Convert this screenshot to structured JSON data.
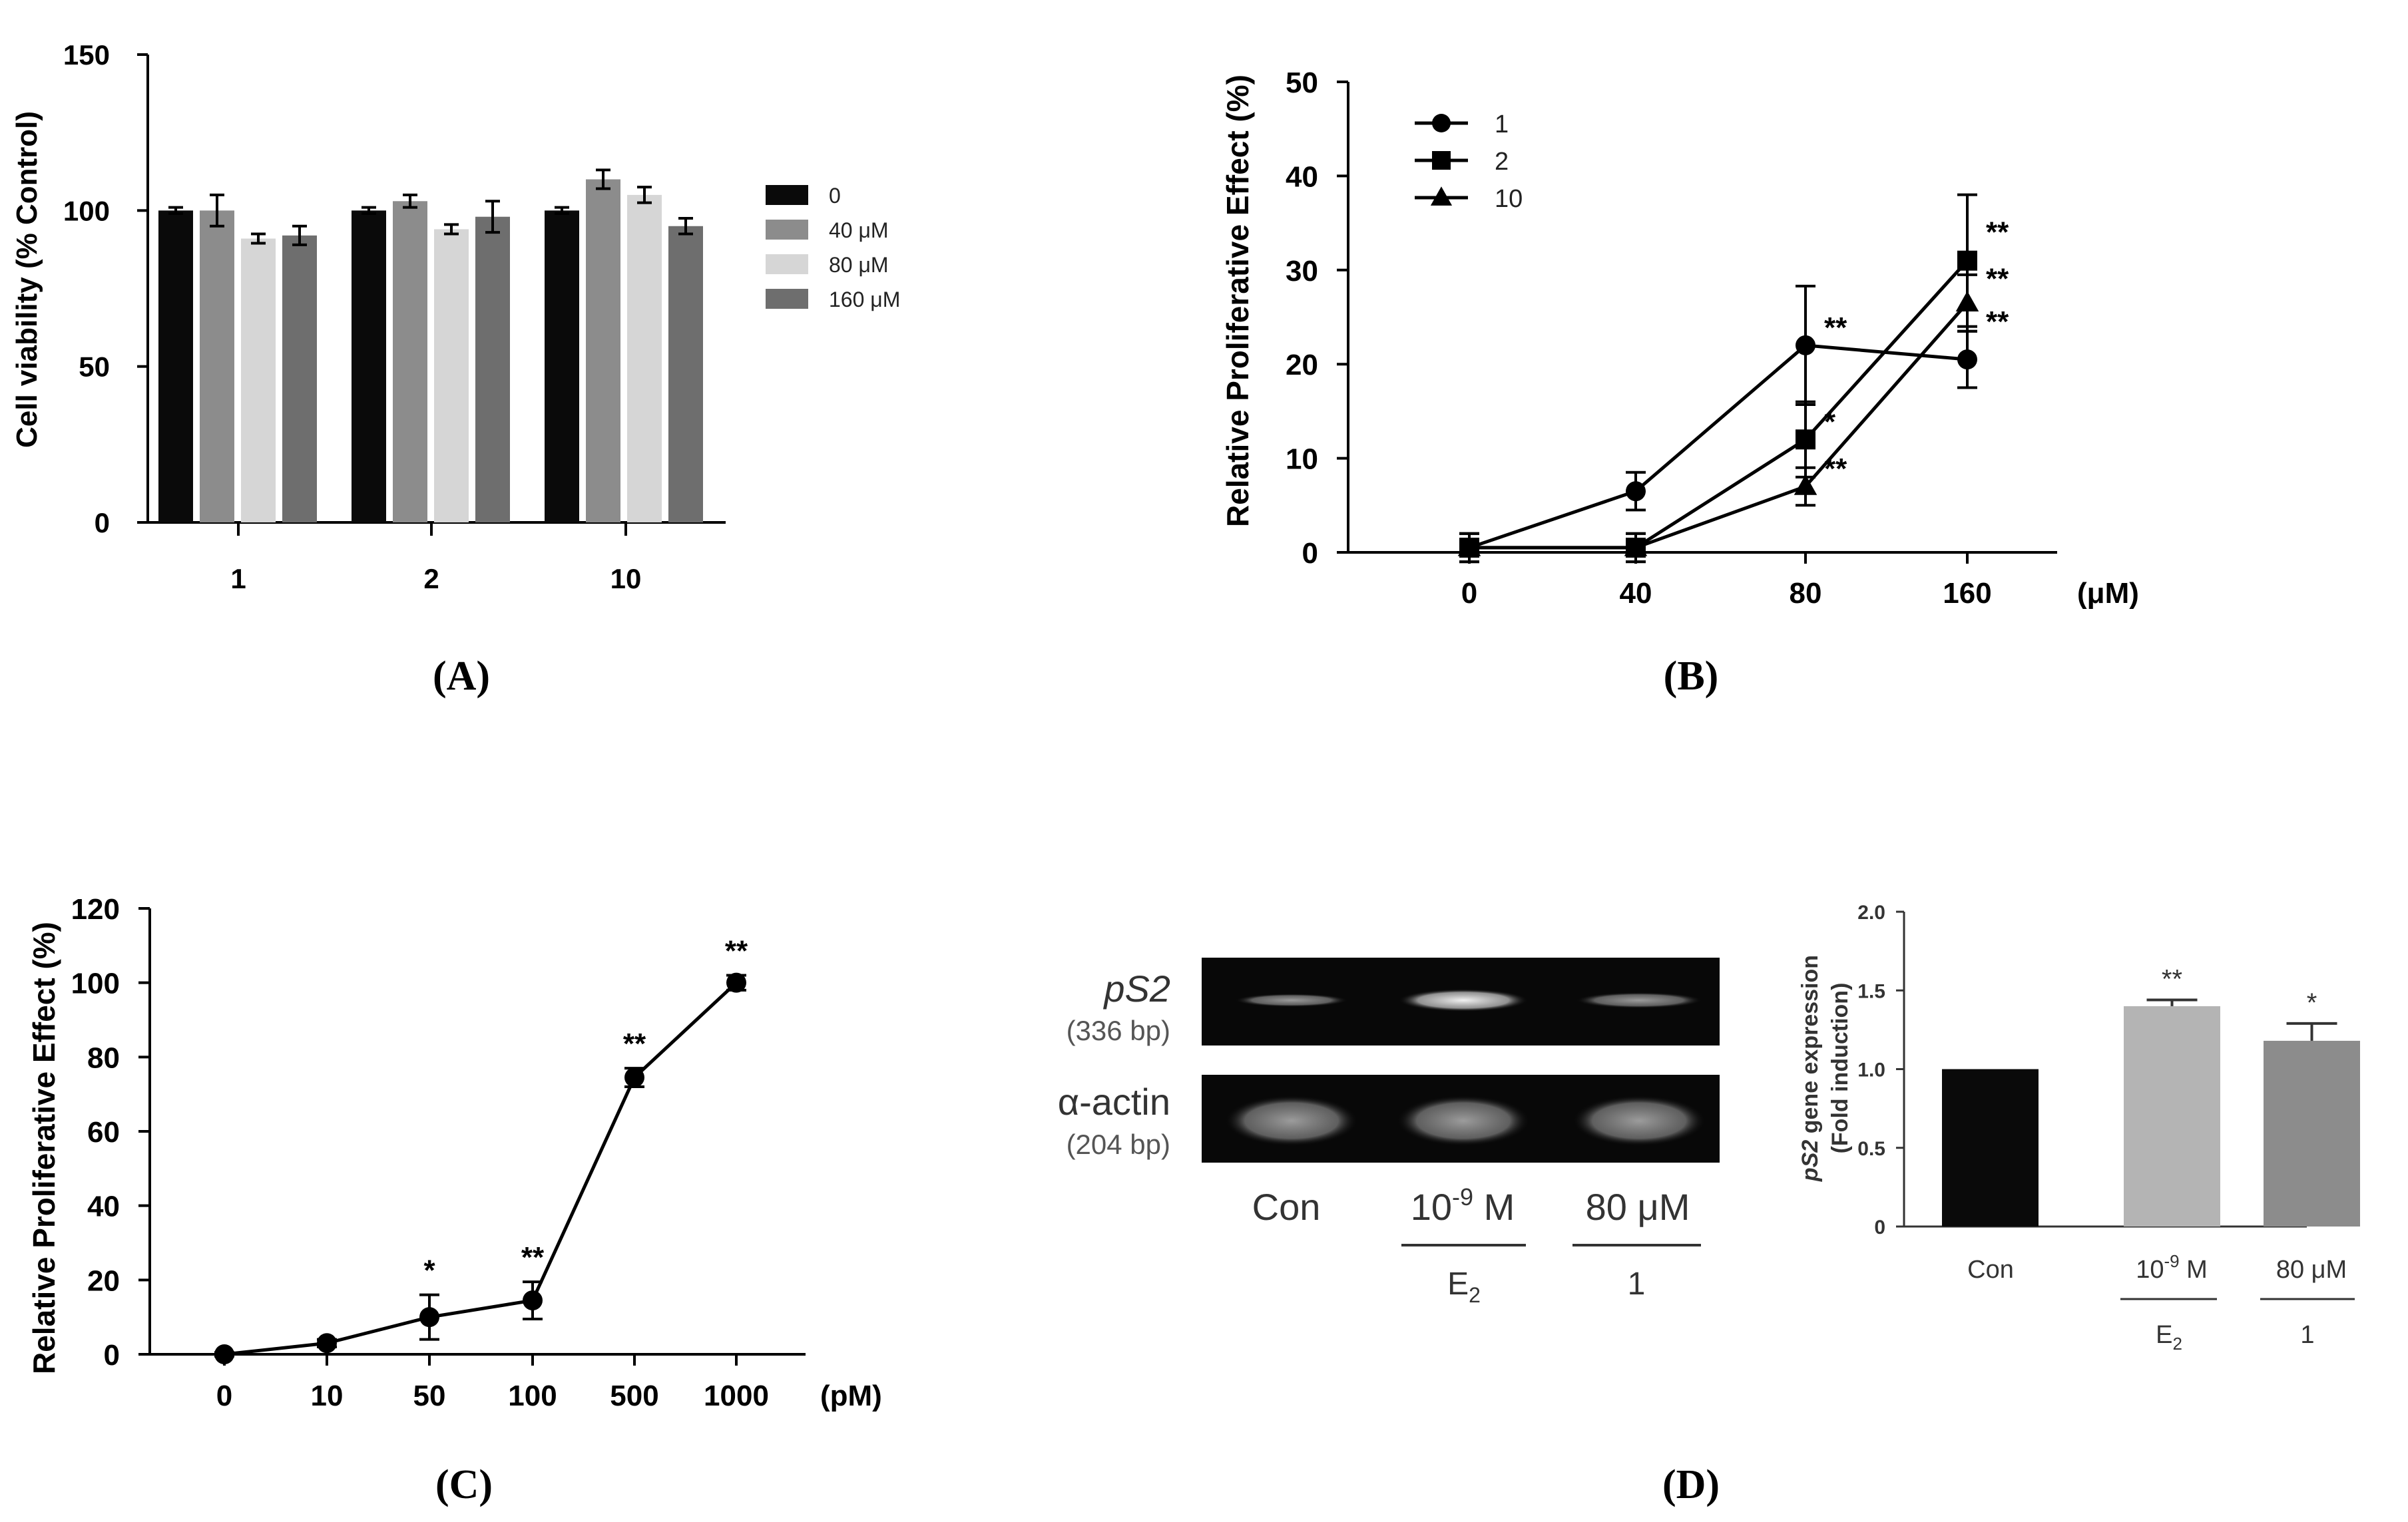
{
  "colors": {
    "black": "#0a0a0a",
    "gray_dark": "#6e6e6e",
    "gray_mid": "#8c8c8c",
    "gray_light": "#d6d6d6",
    "gel_bg": "#080808"
  },
  "panel_labels": {
    "A": "(A)",
    "B": "(B)",
    "C": "(C)",
    "D": "(D)"
  },
  "chart_data": [
    {
      "id": "A",
      "type": "bar",
      "title": "",
      "ylabel": "Cell viability (% Control)",
      "xlabel": "",
      "ylim": [
        0,
        150
      ],
      "yticks": [
        "0",
        "50",
        "100",
        "150"
      ],
      "categories": [
        "1",
        "2",
        "10"
      ],
      "series": [
        {
          "name": "0",
          "values": [
            100,
            100,
            100
          ],
          "errors": [
            1,
            1,
            1
          ],
          "color": "#0a0a0a"
        },
        {
          "name": "40 μM",
          "values": [
            100,
            103,
            110
          ],
          "errors": [
            5,
            2,
            3
          ],
          "color": "#8c8c8c"
        },
        {
          "name": "80 μM",
          "values": [
            91,
            94,
            105
          ],
          "errors": [
            1.5,
            1.5,
            2.5
          ],
          "color": "#d6d6d6"
        },
        {
          "name": "160 μM",
          "values": [
            92,
            98,
            95
          ],
          "errors": [
            3,
            5,
            2.5
          ],
          "color": "#6e6e6e"
        }
      ]
    },
    {
      "id": "B",
      "type": "line",
      "title": "",
      "ylabel": "Relative Proliferative Effect (%)",
      "xlabel": "(μM)",
      "ylim": [
        0,
        50
      ],
      "yticks": [
        "0",
        "10",
        "20",
        "30",
        "40",
        "50"
      ],
      "categories": [
        "0",
        "40",
        "80",
        "160"
      ],
      "series": [
        {
          "name": "1",
          "marker": "circle",
          "values": [
            0.5,
            6.5,
            22,
            20.5
          ],
          "errors": [
            1.5,
            2,
            6.3,
            3
          ],
          "annotations": [
            "",
            "",
            "**",
            "**"
          ]
        },
        {
          "name": "2",
          "marker": "square",
          "values": [
            0.5,
            0.5,
            12,
            31
          ],
          "errors": [
            1.5,
            1.5,
            4,
            7
          ],
          "annotations": [
            "",
            "",
            "*",
            "**"
          ]
        },
        {
          "name": "10",
          "marker": "triangle",
          "values": [
            0.5,
            0.5,
            7,
            26.5
          ],
          "errors": [
            1.5,
            1.5,
            2,
            3
          ],
          "annotations": [
            "",
            "",
            "**",
            "**"
          ]
        }
      ]
    },
    {
      "id": "C",
      "type": "line",
      "title": "",
      "ylabel": "Relative Proliferative Effect (%)",
      "xlabel": "(pM)",
      "ylim": [
        0,
        120
      ],
      "yticks": [
        "0",
        "20",
        "40",
        "60",
        "80",
        "100",
        "120"
      ],
      "categories": [
        "0",
        "10",
        "50",
        "100",
        "500",
        "1000"
      ],
      "series": [
        {
          "name": "E2",
          "marker": "circle",
          "values": [
            0,
            3,
            10,
            14.5,
            74.5,
            100
          ],
          "errors": [
            0.5,
            1,
            6,
            5,
            2.5,
            2
          ],
          "annotations": [
            "",
            "",
            "*",
            "**",
            "**",
            "**"
          ]
        }
      ]
    },
    {
      "id": "D",
      "type": "bar",
      "title": "",
      "ylabel_italic": "pS2",
      "ylabel_rest": " gene expression",
      "ylabel2": "(Fold induction)",
      "ylim": [
        0,
        2.0
      ],
      "yticks": [
        "0",
        "0.5",
        "1.0",
        "1.5",
        "2.0"
      ],
      "categories": [
        "Con",
        "10",
        "80 μM"
      ],
      "values": [
        1.0,
        1.4,
        1.18
      ],
      "errors": [
        0,
        0.04,
        0.11
      ],
      "annotations": [
        "",
        "**",
        "*"
      ],
      "colors": [
        "#0a0a0a",
        "#b4b4b4",
        "#8c8c8c"
      ],
      "group_labels": [
        "E",
        "1"
      ]
    }
  ],
  "gel": {
    "rows": [
      {
        "gene": "pS2",
        "size": "(336 bp)"
      },
      {
        "gene": "α-actin",
        "size": "(204 bp)"
      }
    ],
    "lanes": [
      {
        "label": "Con",
        "group": ""
      },
      {
        "label": "10",
        "group": "E"
      },
      {
        "label": "80 μM",
        "group": "1"
      }
    ],
    "exp_text": "-9",
    "unit_m": " M",
    "sub_text": "2"
  }
}
